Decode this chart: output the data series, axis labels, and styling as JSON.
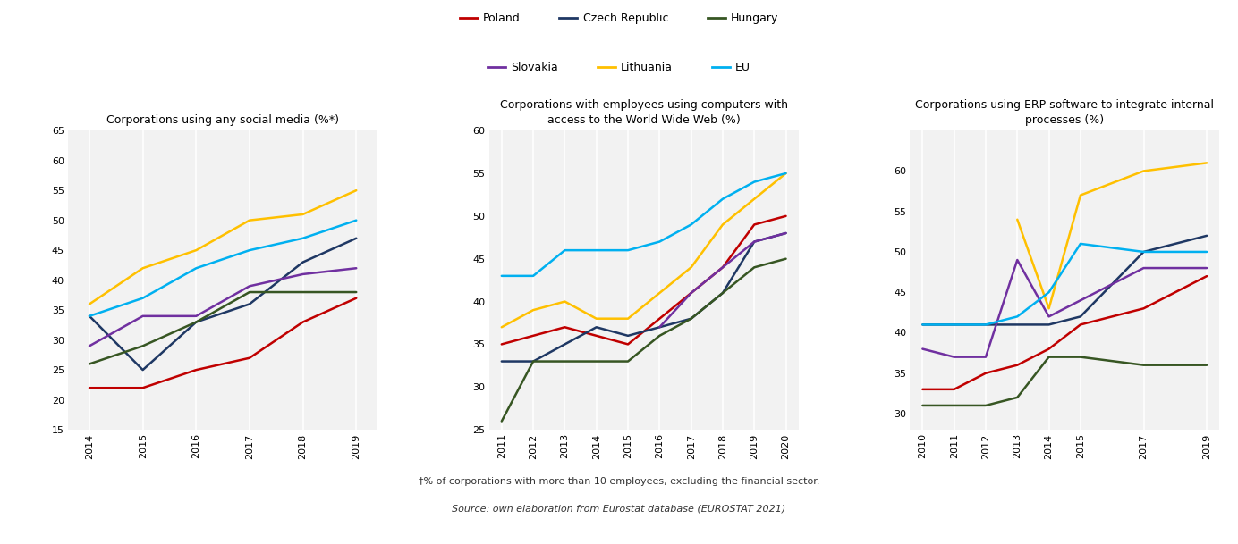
{
  "colors": {
    "Poland": "#c00000",
    "Czech Republic": "#1f3864",
    "Hungary": "#375623",
    "Slovakia": "#7030a0",
    "Lithuania": "#ffc000",
    "EU": "#00b0f0"
  },
  "chart1": {
    "title": "Corporations using any social media (%*)",
    "years": [
      2014,
      2015,
      2016,
      2017,
      2018,
      2019
    ],
    "ylim": [
      15,
      65
    ],
    "yticks": [
      15,
      20,
      25,
      30,
      35,
      40,
      45,
      50,
      55,
      60,
      65
    ],
    "Poland": [
      22,
      22,
      25,
      27,
      33,
      37
    ],
    "Czech Republic": [
      34,
      25,
      33,
      36,
      43,
      47
    ],
    "Hungary": [
      26,
      29,
      33,
      38,
      38,
      38
    ],
    "Slovakia": [
      29,
      34,
      34,
      39,
      41,
      42
    ],
    "Lithuania": [
      36,
      42,
      45,
      50,
      51,
      55
    ],
    "EU": [
      34,
      37,
      42,
      45,
      47,
      50
    ]
  },
  "chart2": {
    "title": "Corporations with employees using computers with\naccess to the World Wide Web (%)",
    "years": [
      2011,
      2012,
      2013,
      2014,
      2015,
      2016,
      2017,
      2018,
      2019,
      2020
    ],
    "ylim": [
      25,
      60
    ],
    "yticks": [
      25,
      30,
      35,
      40,
      45,
      50,
      55,
      60
    ],
    "Poland": [
      35,
      36,
      37,
      36,
      35,
      38,
      41,
      44,
      49,
      50
    ],
    "Czech Republic": [
      33,
      33,
      35,
      37,
      36,
      37,
      38,
      41,
      47,
      48
    ],
    "Hungary": [
      26,
      33,
      33,
      33,
      33,
      36,
      38,
      41,
      44,
      45
    ],
    "Slovakia": [
      null,
      null,
      null,
      null,
      null,
      37,
      41,
      44,
      47,
      48
    ],
    "Lithuania": [
      37,
      39,
      40,
      38,
      38,
      41,
      44,
      49,
      52,
      55
    ],
    "EU": [
      43,
      43,
      46,
      46,
      46,
      47,
      49,
      52,
      54,
      55
    ]
  },
  "chart3": {
    "title": "Corporations using ERP software to integrate internal\nprocesses (%)",
    "years": [
      2010,
      2011,
      2012,
      2013,
      2014,
      2015,
      2017,
      2019
    ],
    "ylim": [
      28,
      65
    ],
    "yticks": [
      30,
      35,
      40,
      45,
      50,
      55,
      60
    ],
    "Poland": [
      33,
      33,
      35,
      36,
      38,
      41,
      43,
      47
    ],
    "Czech Republic": [
      41,
      41,
      41,
      41,
      41,
      42,
      50,
      52
    ],
    "Hungary": [
      31,
      31,
      31,
      32,
      37,
      37,
      36,
      36
    ],
    "Slovakia": [
      38,
      37,
      37,
      49,
      42,
      44,
      48,
      48
    ],
    "Lithuania": [
      null,
      null,
      null,
      54,
      43,
      57,
      60,
      61
    ],
    "EU": [
      41,
      41,
      41,
      42,
      45,
      51,
      50,
      50
    ]
  },
  "footnote": "†% of corporations with more than 10 employees, excluding the financial sector.",
  "source_plain": "Source: own elaboration from ",
  "source_italic": "Eurostat database",
  "source_end": " (EUROSTAT 2021)",
  "background_color": "#f2f2f2",
  "legend_order": [
    "Poland",
    "Czech Republic",
    "Hungary",
    "Slovakia",
    "Lithuania",
    "EU"
  ]
}
